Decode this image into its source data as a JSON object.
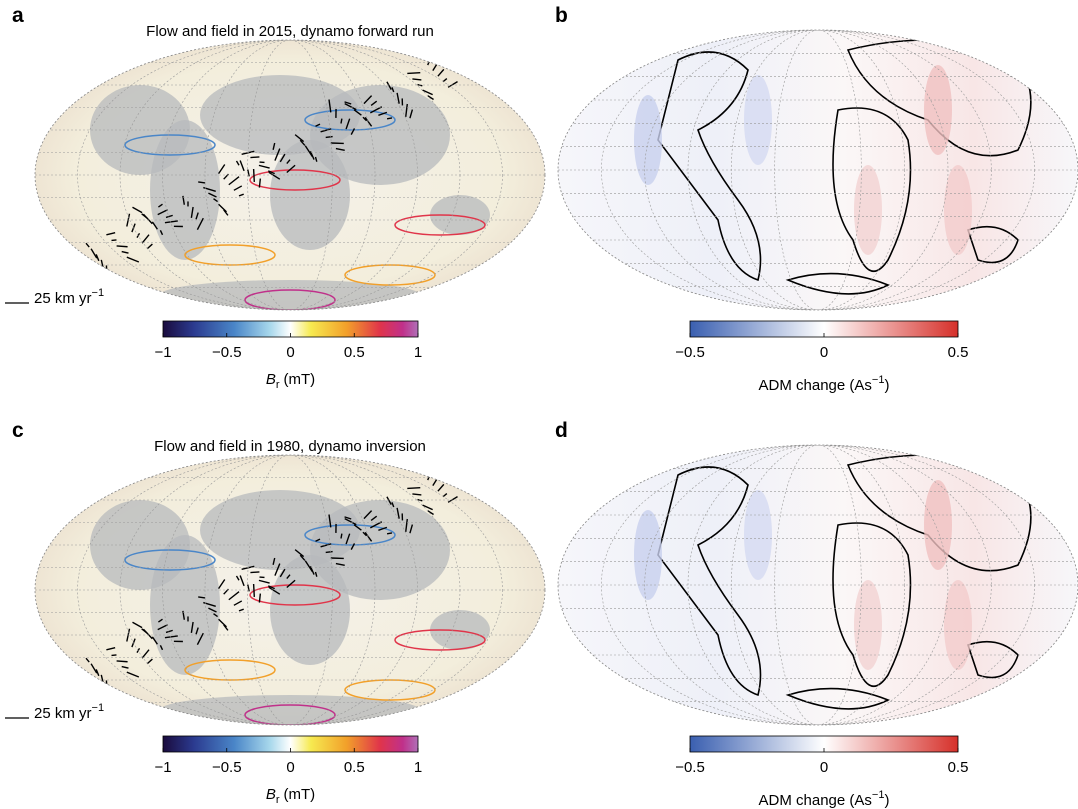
{
  "panels": [
    {
      "label": "a",
      "title": "Flow and field in 2015, dynamo forward run",
      "scale_label": {
        "text": "25 km yr",
        "sup": "−1"
      },
      "colorbar": {
        "ticks": [
          {
            "value": -1,
            "label": "−1"
          },
          {
            "value": -0.5,
            "label": "−0.5"
          },
          0,
          0.5,
          1
        ],
        "label": {
          "symbol": "B",
          "sub": "r",
          "unit": "(mT)"
        }
      }
    },
    {
      "label": "b",
      "colorbar": {
        "ticks": [
          {
            "value": -0.5,
            "label": "−0.5"
          },
          0,
          0.5
        ],
        "label": {
          "text": "ADM change (As",
          "sup": "−1",
          "close": ")"
        }
      }
    },
    {
      "label": "c",
      "title": "Flow and field in 1980, dynamo inversion",
      "scale_label": {
        "text": "25 km yr",
        "sup": "−1"
      },
      "colorbar": {
        "ticks": [
          {
            "value": -1,
            "label": "−1"
          },
          {
            "value": -0.5,
            "label": "−0.5"
          },
          0,
          0.5,
          1
        ],
        "label": {
          "symbol": "B",
          "sub": "r",
          "unit": "(mT)"
        }
      }
    },
    {
      "label": "d",
      "colorbar": {
        "ticks": [
          {
            "value": -0.5,
            "label": "−0.5"
          },
          0,
          0.5
        ],
        "label": {
          "text": "ADM change (As",
          "sup": "−1",
          "close": ")"
        }
      }
    }
  ]
}
